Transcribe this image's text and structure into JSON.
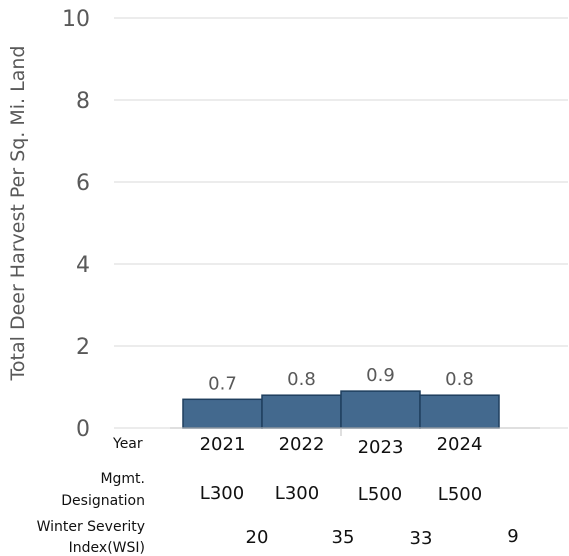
{
  "chart_data": {
    "type": "bar",
    "ylabel": "Total Deer Harvest Per Sq. Mi. Land",
    "ylim": [
      0,
      10
    ],
    "y_ticks": [
      0,
      2,
      4,
      6,
      8,
      10
    ],
    "grid": true,
    "bar_color": "#43698e",
    "bar_edge_color": "#1f3f5e",
    "categories": [
      "2021",
      "2022",
      "2023",
      "2024"
    ],
    "values": [
      0.7,
      0.8,
      0.9,
      0.8
    ],
    "data_labels": [
      "0.7",
      "0.8",
      "0.9",
      "0.8"
    ],
    "year_header": "Year",
    "mgmt_header": [
      "Mgmt.",
      "Designation"
    ],
    "mgmt_values": [
      "L300",
      "L300",
      "L500",
      "L500"
    ],
    "wsi_header": [
      "Winter Severity",
      "Index(WSI)"
    ],
    "wsi_values": [
      "20",
      "35",
      "33",
      "9"
    ]
  }
}
